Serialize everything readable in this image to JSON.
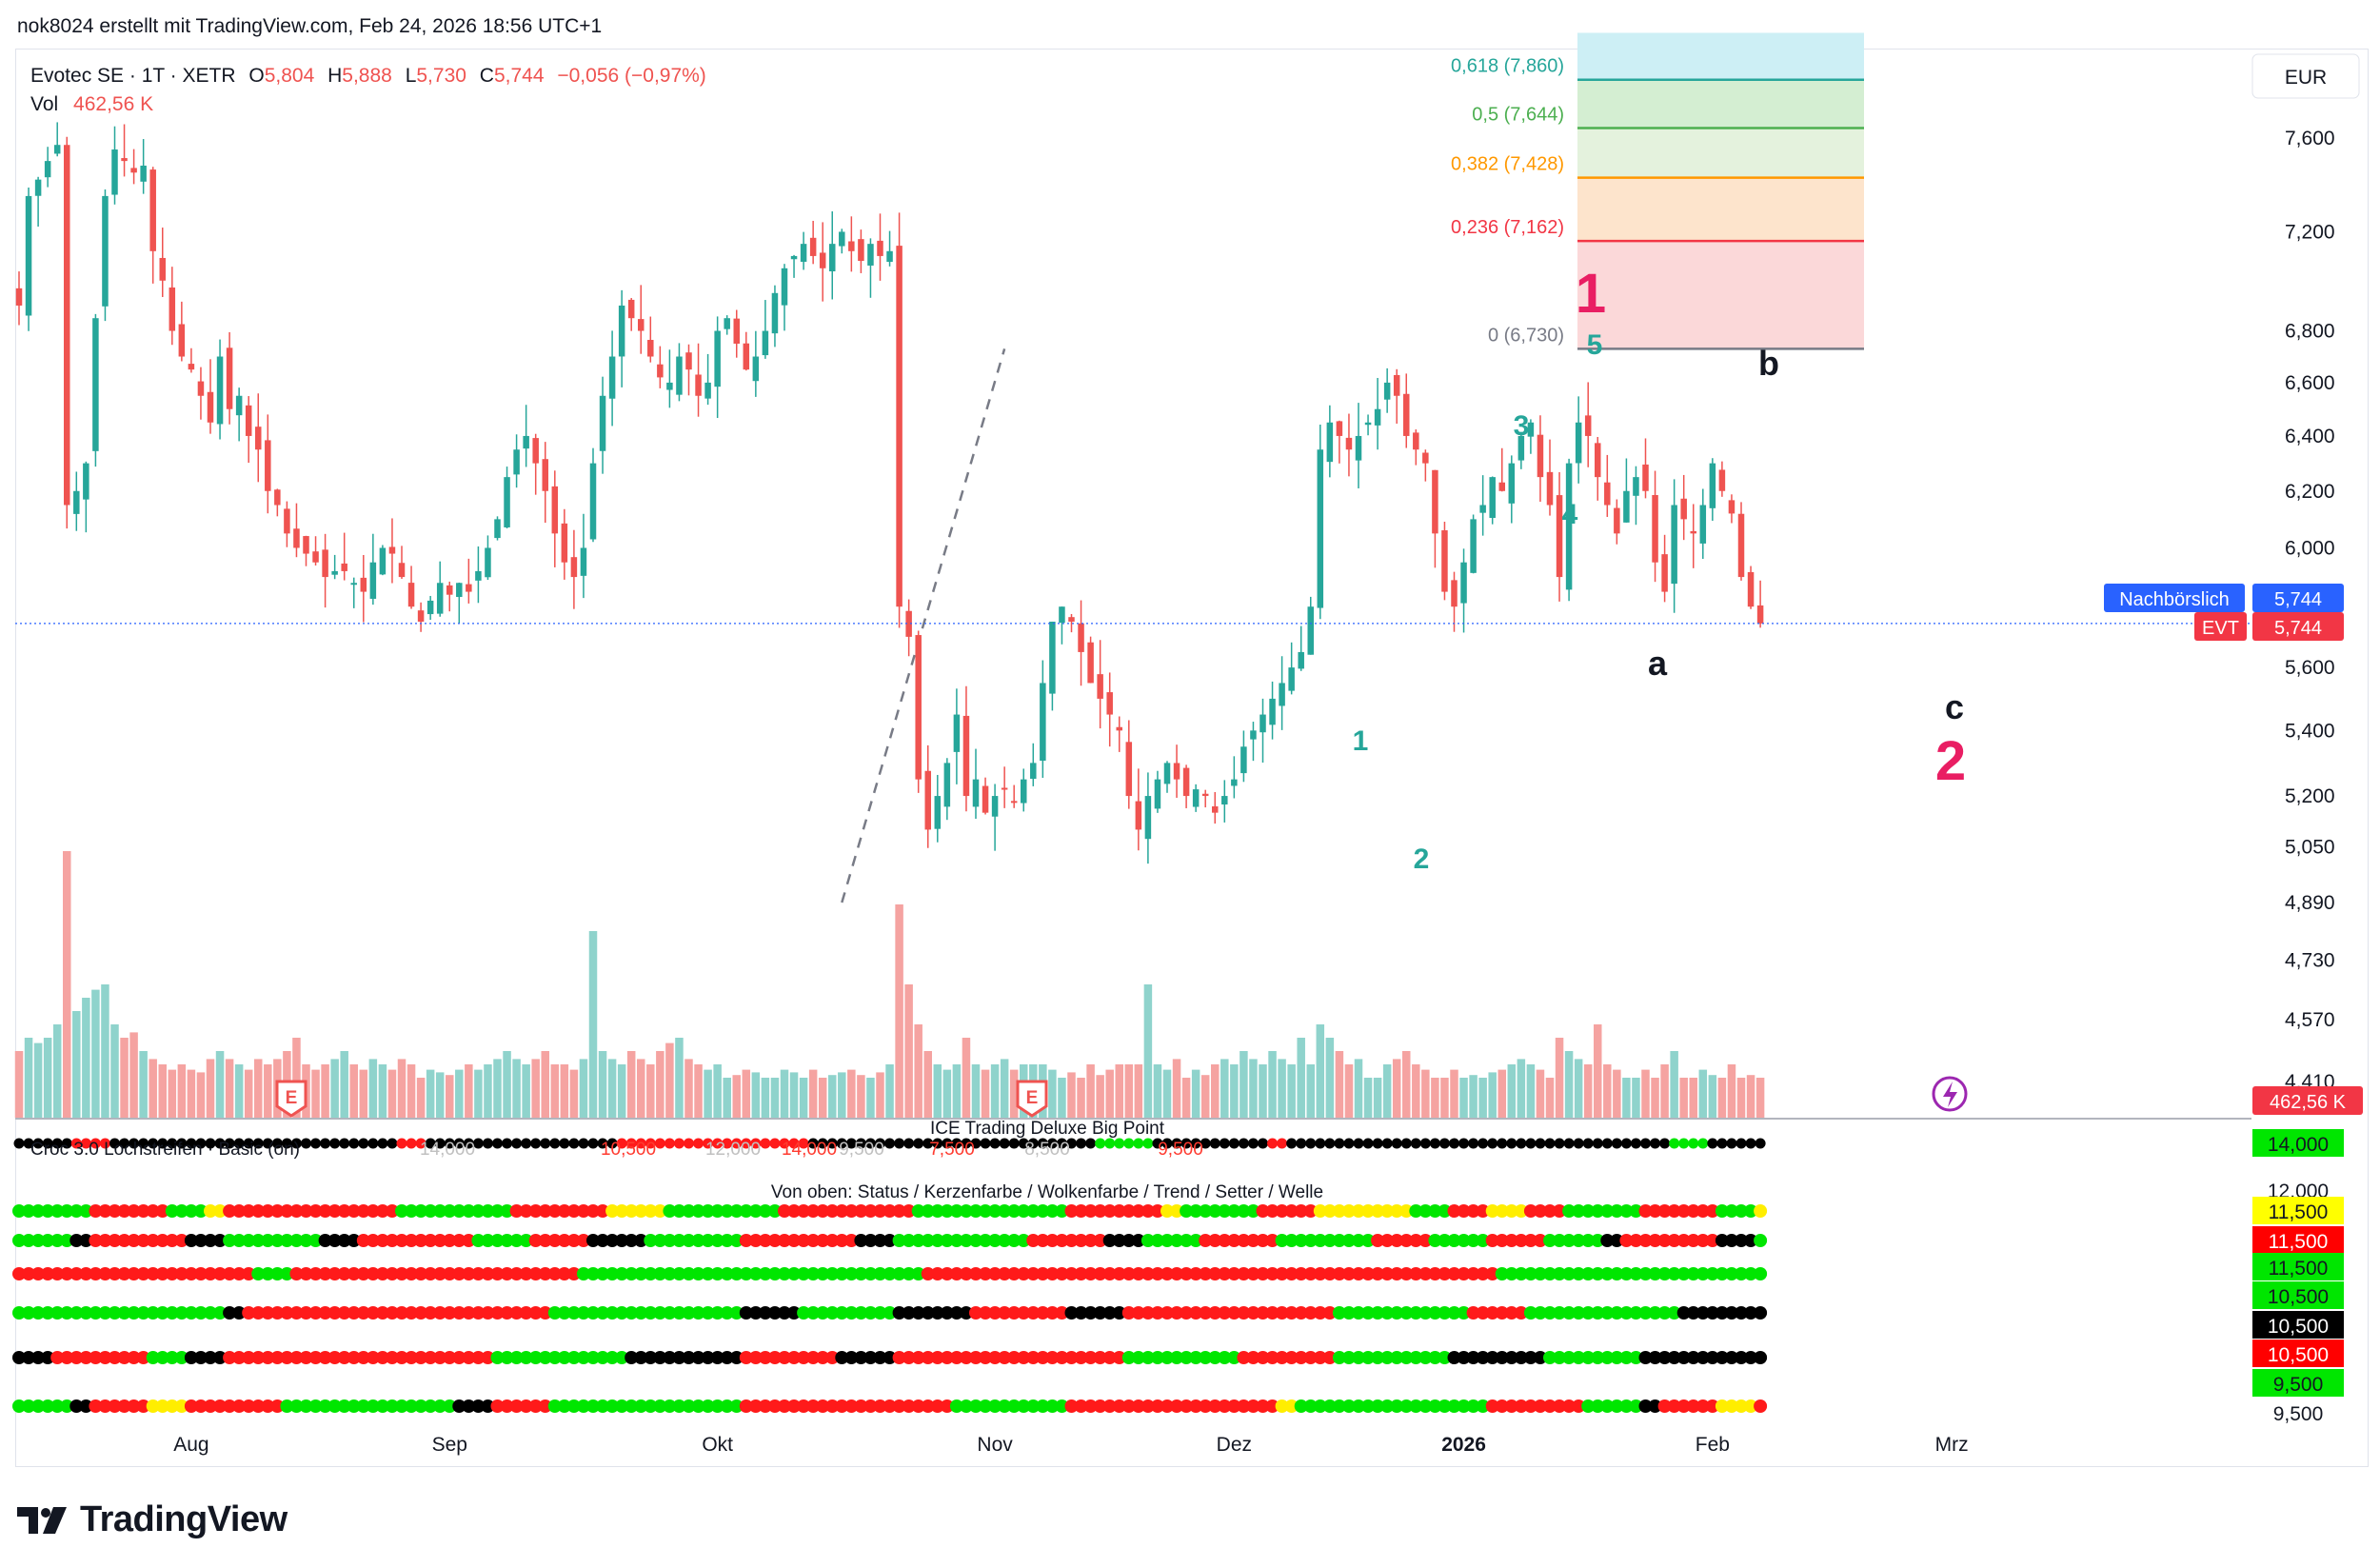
{
  "header": {
    "text": "nok8024 erstellt mit TradingView.com, Feb 24, 2026 18:56 UTC+1"
  },
  "legend": {
    "symbol": "Evotec SE · 1T · XETR",
    "o_label": "O",
    "o": "5,804",
    "h_label": "H",
    "h": "5,888",
    "l_label": "L",
    "l": "5,730",
    "c_label": "C",
    "c": "5,744",
    "change": "−0,056 (−0,97%)",
    "vol_label": "Vol",
    "vol": "462,56 K"
  },
  "currency": "EUR",
  "badges": {
    "post_label": "Nachbörslich",
    "post_value": "5,744",
    "sym_label": "EVT",
    "sym_value": "5,744",
    "vol_value": "462,56 K"
  },
  "colors": {
    "up": "#26a69a",
    "down": "#ef5350",
    "vol_up": "#8fd3cc",
    "vol_down": "#f5a3a1",
    "accent": "#2962ff",
    "wave": "#e91e63",
    "teal": "#26a69a"
  },
  "fib": {
    "levels": [
      {
        "label": "0,618 (7,860)",
        "price": 7.86,
        "color": "#26a69a"
      },
      {
        "label": "0,5 (7,644)",
        "price": 7.644,
        "color": "#4caf50"
      },
      {
        "label": "0,382 (7,428)",
        "price": 7.428,
        "color": "#ff9800"
      },
      {
        "label": "0,236 (7,162)",
        "price": 7.162,
        "color": "#f23645"
      },
      {
        "label": "0 (6,730)",
        "price": 6.73,
        "color": "#787b86"
      }
    ]
  },
  "wave_labels": [
    {
      "text": "1",
      "color": "#e91e63",
      "size": "big"
    },
    {
      "text": "2",
      "color": "#e91e63",
      "size": "big"
    },
    {
      "text": "1",
      "color": "#26a69a",
      "size": "small"
    },
    {
      "text": "2",
      "color": "#26a69a",
      "size": "small"
    },
    {
      "text": "3",
      "color": "#26a69a",
      "size": "small"
    },
    {
      "text": "4",
      "color": "#26a69a",
      "size": "small"
    },
    {
      "text": "5",
      "color": "#26a69a",
      "size": "small"
    },
    {
      "text": "a",
      "color": "#131722",
      "size": "mid"
    },
    {
      "text": "b",
      "color": "#131722",
      "size": "mid"
    },
    {
      "text": "c",
      "color": "#131722",
      "size": "mid"
    }
  ],
  "indicators": {
    "ice_title": "ICE Trading Deluxe Big Point",
    "croc_title": "Croc 3.0 Lochstreifen · Basic (on)",
    "croc_ghost": [
      "14,000",
      "10,500",
      "12,000",
      "14,000",
      "9,500",
      "7,500",
      "8,500",
      "9,500"
    ],
    "subtitle": "Von oben: Status / Kerzenfarbe / Wolkenfarbe / Trend / Setter / Welle",
    "right_badges": [
      {
        "text": "14,000",
        "bg": "#00e600",
        "fg": "#131722"
      },
      {
        "text": "12,000",
        "bg": "#ffffff",
        "fg": "#131722"
      },
      {
        "text": "11,500",
        "bg": "#ffff00",
        "fg": "#131722"
      },
      {
        "text": "11,500",
        "bg": "#ff0000",
        "fg": "#ffffff"
      },
      {
        "text": "11,500",
        "bg": "#00e600",
        "fg": "#131722"
      },
      {
        "text": "10,500",
        "bg": "#00e600",
        "fg": "#131722"
      },
      {
        "text": "10,500",
        "bg": "#000000",
        "fg": "#ffffff"
      },
      {
        "text": "10,500",
        "bg": "#ff0000",
        "fg": "#ffffff"
      },
      {
        "text": "9,500",
        "bg": "#00e600",
        "fg": "#131722"
      },
      {
        "text": "9,500",
        "bg": "#ffffff",
        "fg": "#131722"
      }
    ]
  },
  "footer": {
    "brand": "TradingView"
  },
  "chart_data": {
    "type": "candlestick",
    "title": "Evotec SE · 1T · XETR",
    "currency": "EUR",
    "y_scale": "log",
    "ylim": [
      4.3,
      7.95
    ],
    "y_ticks": [
      7.6,
      7.2,
      6.8,
      6.6,
      6.4,
      6.2,
      6.0,
      5.6,
      5.4,
      5.2,
      5.05,
      4.89,
      4.73,
      4.57,
      4.41
    ],
    "y_tick_labels": [
      "7,600",
      "7,200",
      "6,800",
      "6,600",
      "6,400",
      "6,200",
      "6,000",
      "5,600",
      "5,400",
      "5,200",
      "5,050",
      "4,890",
      "4,730",
      "4,570",
      "4,410"
    ],
    "x_labels": [
      {
        "text": "Aug",
        "bold": false,
        "idx": 18
      },
      {
        "text": "Sep",
        "bold": false,
        "idx": 45
      },
      {
        "text": "Okt",
        "bold": false,
        "idx": 73
      },
      {
        "text": "Nov",
        "bold": false,
        "idx": 102
      },
      {
        "text": "Dez",
        "bold": false,
        "idx": 127
      },
      {
        "text": "2026",
        "bold": true,
        "idx": 151
      },
      {
        "text": "Feb",
        "bold": false,
        "idx": 177
      },
      {
        "text": "Mrz",
        "bold": false,
        "idx": 202
      }
    ],
    "last_close": 5.744,
    "close": [
      6.9,
      7.35,
      7.42,
      7.5,
      7.57,
      6.15,
      6.2,
      6.3,
      6.85,
      7.35,
      7.55,
      7.5,
      7.45,
      7.48,
      7.12,
      7.0,
      6.8,
      6.7,
      6.65,
      6.55,
      6.45,
      6.7,
      6.5,
      6.55,
      6.4,
      6.35,
      6.2,
      6.15,
      6.05,
      6.0,
      5.98,
      5.95,
      5.9,
      5.92,
      5.92,
      5.88,
      5.85,
      5.95,
      6.0,
      5.98,
      5.9,
      5.8,
      5.75,
      5.82,
      5.88,
      5.84,
      5.88,
      5.85,
      5.92,
      6.0,
      6.1,
      6.25,
      6.35,
      6.4,
      6.3,
      6.2,
      6.05,
      5.95,
      5.9,
      6.0,
      6.3,
      6.55,
      6.7,
      6.9,
      6.85,
      6.8,
      6.7,
      6.62,
      6.6,
      6.7,
      6.65,
      6.55,
      6.6,
      6.8,
      6.85,
      6.75,
      6.65,
      6.7,
      6.8,
      6.95,
      7.05,
      7.1,
      7.15,
      7.1,
      7.05,
      7.15,
      7.2,
      7.12,
      7.08,
      7.15,
      7.1,
      7.12,
      5.8,
      5.7,
      5.25,
      5.1,
      5.2,
      5.3,
      5.45,
      5.2,
      5.25,
      5.15,
      5.2,
      5.22,
      5.18,
      5.25,
      5.3,
      5.55,
      5.75,
      5.8,
      5.75,
      5.65,
      5.55,
      5.5,
      5.45,
      5.4,
      5.2,
      5.1,
      5.2,
      5.25,
      5.3,
      5.25,
      5.2,
      5.22,
      5.2,
      5.15,
      5.2,
      5.25,
      5.35,
      5.4,
      5.45,
      5.5,
      5.55,
      5.6,
      5.65,
      5.8,
      6.35,
      6.45,
      6.4,
      6.35,
      6.4,
      6.45,
      6.5,
      6.6,
      6.55,
      6.4,
      6.35,
      6.3,
      6.05,
      5.85,
      5.8,
      5.95,
      6.1,
      6.15,
      6.25,
      6.2,
      6.3,
      6.4,
      6.45,
      6.25,
      6.15,
      5.9,
      6.3,
      6.45,
      6.4,
      6.25,
      6.15,
      6.05,
      6.2,
      6.25,
      6.2,
      5.95,
      5.85,
      6.15,
      6.1,
      6.05,
      6.15,
      6.3,
      6.2,
      6.12,
      5.9,
      5.8,
      5.744
    ],
    "volume_relative": [
      0.25,
      0.3,
      0.28,
      0.3,
      0.35,
      1.0,
      0.4,
      0.45,
      0.48,
      0.5,
      0.35,
      0.3,
      0.32,
      0.25,
      0.22,
      0.2,
      0.18,
      0.2,
      0.18,
      0.17,
      0.22,
      0.25,
      0.22,
      0.2,
      0.18,
      0.22,
      0.2,
      0.22,
      0.25,
      0.3,
      0.2,
      0.18,
      0.2,
      0.22,
      0.25,
      0.2,
      0.18,
      0.22,
      0.2,
      0.18,
      0.22,
      0.2,
      0.15,
      0.18,
      0.17,
      0.16,
      0.18,
      0.2,
      0.18,
      0.2,
      0.22,
      0.25,
      0.22,
      0.2,
      0.22,
      0.25,
      0.2,
      0.2,
      0.18,
      0.22,
      0.7,
      0.25,
      0.22,
      0.2,
      0.25,
      0.22,
      0.2,
      0.25,
      0.28,
      0.3,
      0.22,
      0.2,
      0.18,
      0.2,
      0.15,
      0.16,
      0.18,
      0.17,
      0.15,
      0.15,
      0.18,
      0.17,
      0.15,
      0.18,
      0.15,
      0.16,
      0.17,
      0.18,
      0.16,
      0.15,
      0.17,
      0.2,
      0.8,
      0.5,
      0.35,
      0.25,
      0.2,
      0.18,
      0.2,
      0.3,
      0.2,
      0.18,
      0.2,
      0.22,
      0.18,
      0.2,
      0.2,
      0.2,
      0.18,
      0.15,
      0.17,
      0.15,
      0.2,
      0.16,
      0.18,
      0.2,
      0.2,
      0.2,
      0.5,
      0.2,
      0.18,
      0.22,
      0.15,
      0.18,
      0.16,
      0.2,
      0.22,
      0.2,
      0.25,
      0.22,
      0.2,
      0.25,
      0.22,
      0.2,
      0.3,
      0.2,
      0.35,
      0.3,
      0.25,
      0.2,
      0.22,
      0.15,
      0.15,
      0.2,
      0.22,
      0.25,
      0.2,
      0.18,
      0.15,
      0.15,
      0.18,
      0.15,
      0.16,
      0.15,
      0.17,
      0.18,
      0.2,
      0.22,
      0.2,
      0.18,
      0.15,
      0.3,
      0.25,
      0.22,
      0.2,
      0.35,
      0.2,
      0.18,
      0.15,
      0.15,
      0.18,
      0.15,
      0.2,
      0.25,
      0.15,
      0.15,
      0.18,
      0.16,
      0.15,
      0.2,
      0.15,
      0.16,
      0.15,
      0.14,
      0.2
    ]
  }
}
